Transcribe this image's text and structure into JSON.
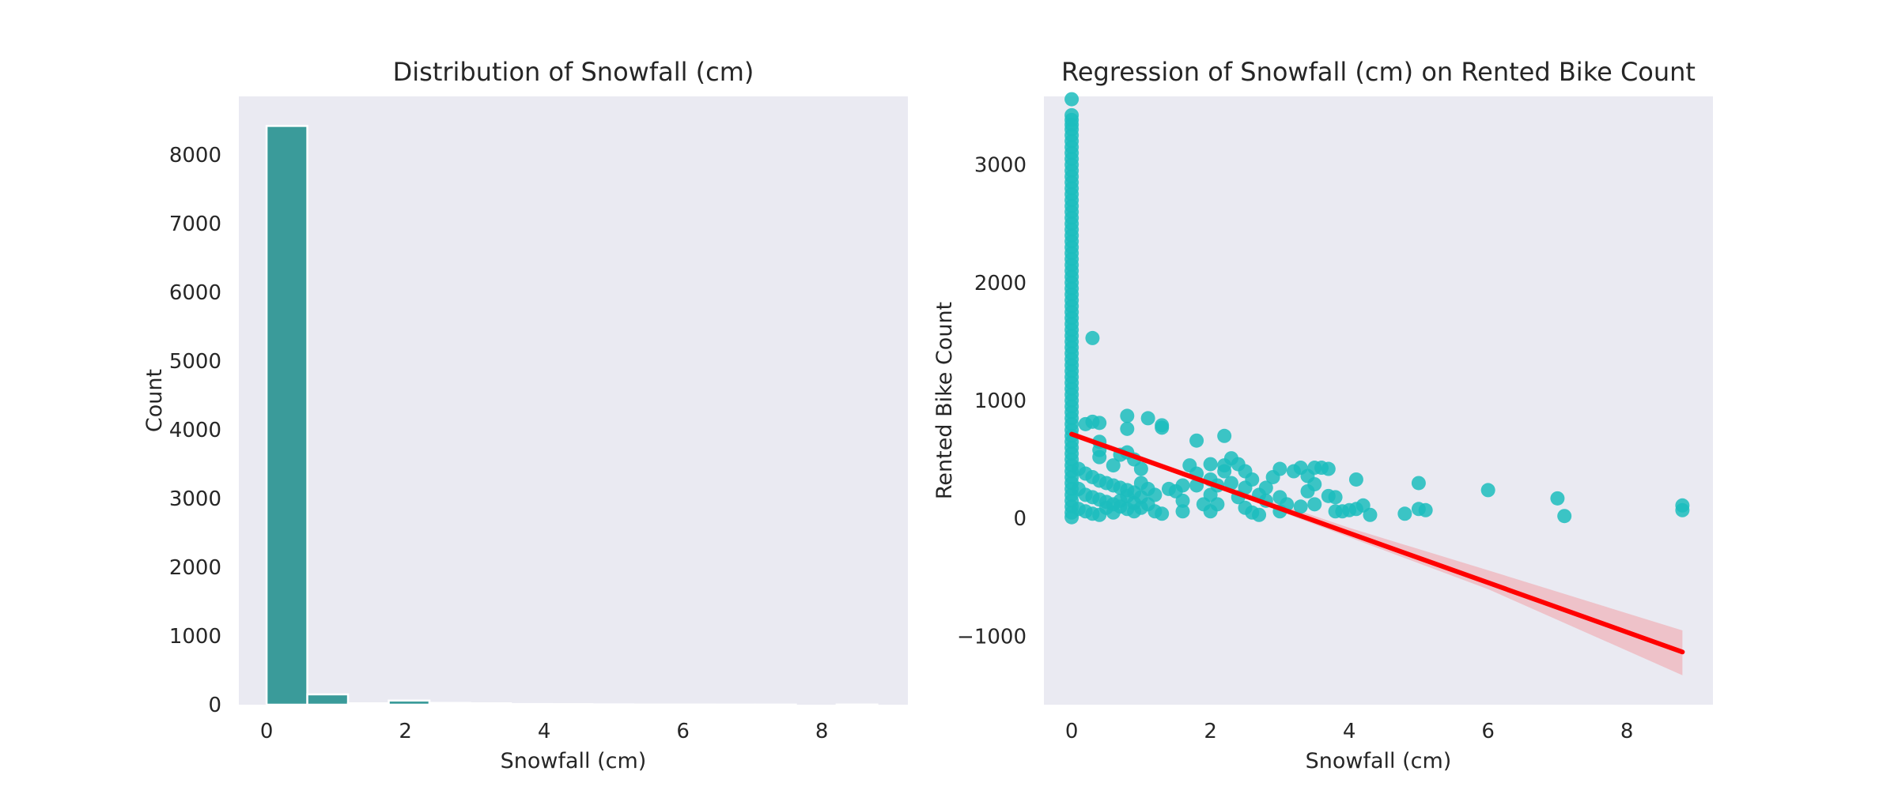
{
  "chart_data": [
    {
      "type": "bar",
      "title": "Distribution of Snowfall (cm)",
      "xlabel": "Snowfall (cm)",
      "ylabel": "Count",
      "xlim": [
        -0.4,
        9.24
      ],
      "ylim": [
        0,
        8850
      ],
      "xticks": [
        0,
        2,
        4,
        6,
        8
      ],
      "yticks": [
        0,
        1000,
        2000,
        3000,
        4000,
        5000,
        6000,
        7000,
        8000
      ],
      "bin_width": 0.5867,
      "bin_edges": [
        0,
        0.5867,
        1.1733,
        1.76,
        2.3467,
        2.9333,
        3.52,
        4.1067,
        4.6933,
        5.28,
        5.8667,
        6.4533,
        7.04,
        7.6267,
        8.2133,
        8.8
      ],
      "values": [
        8420,
        150,
        20,
        60,
        25,
        20,
        10,
        8,
        5,
        3,
        3,
        2,
        2,
        0,
        3
      ],
      "bar_color": "#3a9b9a",
      "grid": false
    },
    {
      "type": "scatter",
      "title": "Regression of Snowfall (cm) on Rented Bike Count",
      "xlabel": "Snowfall (cm)",
      "ylabel": "Rented Bike Count",
      "xlim": [
        -0.4,
        9.24
      ],
      "ylim": [
        -1580,
        3580
      ],
      "xticks": [
        0,
        2,
        4,
        6,
        8
      ],
      "yticks": [
        -1000,
        0,
        1000,
        2000,
        3000
      ],
      "point_color": "#1cbdbd",
      "line_color": "#ff0000",
      "band_color": "#f0a0a8",
      "grid": false,
      "points": [
        [
          0,
          3556
        ],
        [
          0,
          3420
        ],
        [
          0,
          3380
        ],
        [
          0,
          3340
        ],
        [
          0,
          3300
        ],
        [
          0,
          3250
        ],
        [
          0,
          3200
        ],
        [
          0,
          3150
        ],
        [
          0,
          3100
        ],
        [
          0,
          3050
        ],
        [
          0,
          3000
        ],
        [
          0,
          2950
        ],
        [
          0,
          2900
        ],
        [
          0,
          2850
        ],
        [
          0,
          2800
        ],
        [
          0,
          2750
        ],
        [
          0,
          2700
        ],
        [
          0,
          2650
        ],
        [
          0,
          2600
        ],
        [
          0,
          2550
        ],
        [
          0,
          2500
        ],
        [
          0,
          2450
        ],
        [
          0,
          2400
        ],
        [
          0,
          2350
        ],
        [
          0,
          2300
        ],
        [
          0,
          2250
        ],
        [
          0,
          2200
        ],
        [
          0,
          2150
        ],
        [
          0,
          2100
        ],
        [
          0,
          2050
        ],
        [
          0,
          2000
        ],
        [
          0,
          1950
        ],
        [
          0,
          1900
        ],
        [
          0,
          1850
        ],
        [
          0,
          1800
        ],
        [
          0,
          1750
        ],
        [
          0,
          1700
        ],
        [
          0,
          1650
        ],
        [
          0,
          1600
        ],
        [
          0,
          1550
        ],
        [
          0,
          1500
        ],
        [
          0,
          1450
        ],
        [
          0,
          1400
        ],
        [
          0,
          1350
        ],
        [
          0,
          1300
        ],
        [
          0,
          1250
        ],
        [
          0,
          1200
        ],
        [
          0,
          1150
        ],
        [
          0,
          1100
        ],
        [
          0,
          1050
        ],
        [
          0,
          1000
        ],
        [
          0,
          950
        ],
        [
          0,
          900
        ],
        [
          0,
          850
        ],
        [
          0,
          800
        ],
        [
          0,
          750
        ],
        [
          0,
          700
        ],
        [
          0,
          650
        ],
        [
          0,
          600
        ],
        [
          0,
          550
        ],
        [
          0,
          500
        ],
        [
          0,
          450
        ],
        [
          0,
          400
        ],
        [
          0,
          350
        ],
        [
          0,
          300
        ],
        [
          0,
          250
        ],
        [
          0,
          200
        ],
        [
          0,
          150
        ],
        [
          0,
          100
        ],
        [
          0,
          50
        ],
        [
          0,
          10
        ],
        [
          0.3,
          1530
        ],
        [
          0.2,
          800
        ],
        [
          0.3,
          820
        ],
        [
          0.4,
          810
        ],
        [
          0.8,
          870
        ],
        [
          0.8,
          760
        ],
        [
          1.1,
          850
        ],
        [
          1.3,
          790
        ],
        [
          1.3,
          770
        ],
        [
          0.4,
          650
        ],
        [
          0.4,
          580
        ],
        [
          0.4,
          520
        ],
        [
          0.8,
          560
        ],
        [
          0.7,
          540
        ],
        [
          0.9,
          500
        ],
        [
          1.0,
          420
        ],
        [
          0.6,
          450
        ],
        [
          0.1,
          420
        ],
        [
          0.2,
          380
        ],
        [
          0.3,
          350
        ],
        [
          0.4,
          320
        ],
        [
          0.5,
          300
        ],
        [
          0.6,
          280
        ],
        [
          0.7,
          260
        ],
        [
          0.8,
          240
        ],
        [
          0.9,
          220
        ],
        [
          0.1,
          250
        ],
        [
          0.2,
          200
        ],
        [
          0.3,
          180
        ],
        [
          0.4,
          160
        ],
        [
          0.5,
          140
        ],
        [
          0.6,
          120
        ],
        [
          0.7,
          100
        ],
        [
          0.8,
          80
        ],
        [
          0.9,
          60
        ],
        [
          0.1,
          80
        ],
        [
          0.2,
          60
        ],
        [
          0.3,
          40
        ],
        [
          0.4,
          30
        ],
        [
          0.5,
          90
        ],
        [
          0.6,
          50
        ],
        [
          0.7,
          150
        ],
        [
          0.8,
          190
        ],
        [
          0.9,
          130
        ],
        [
          1.0,
          300
        ],
        [
          1.0,
          180
        ],
        [
          1.0,
          90
        ],
        [
          1.1,
          250
        ],
        [
          1.1,
          120
        ],
        [
          1.2,
          60
        ],
        [
          1.2,
          200
        ],
        [
          1.3,
          40
        ],
        [
          1.4,
          250
        ],
        [
          1.5,
          230
        ],
        [
          1.6,
          280
        ],
        [
          1.6,
          150
        ],
        [
          1.6,
          60
        ],
        [
          1.7,
          450
        ],
        [
          1.8,
          380
        ],
        [
          1.8,
          280
        ],
        [
          1.8,
          660
        ],
        [
          1.9,
          120
        ],
        [
          2.0,
          460
        ],
        [
          2.0,
          330
        ],
        [
          2.0,
          200
        ],
        [
          2.0,
          60
        ],
        [
          2.1,
          280
        ],
        [
          2.1,
          120
        ],
        [
          2.2,
          700
        ],
        [
          2.2,
          450
        ],
        [
          2.2,
          400
        ],
        [
          2.3,
          510
        ],
        [
          2.3,
          300
        ],
        [
          2.4,
          460
        ],
        [
          2.4,
          180
        ],
        [
          2.5,
          400
        ],
        [
          2.5,
          260
        ],
        [
          2.5,
          90
        ],
        [
          2.6,
          330
        ],
        [
          2.6,
          50
        ],
        [
          2.7,
          30
        ],
        [
          2.7,
          200
        ],
        [
          2.8,
          260
        ],
        [
          2.8,
          150
        ],
        [
          2.9,
          350
        ],
        [
          3.0,
          420
        ],
        [
          3.0,
          180
        ],
        [
          3.0,
          60
        ],
        [
          3.1,
          120
        ],
        [
          3.2,
          400
        ],
        [
          3.3,
          430
        ],
        [
          3.3,
          100
        ],
        [
          3.4,
          360
        ],
        [
          3.4,
          230
        ],
        [
          3.5,
          290
        ],
        [
          3.5,
          120
        ],
        [
          3.5,
          430
        ],
        [
          3.6,
          430
        ],
        [
          3.7,
          420
        ],
        [
          3.7,
          190
        ],
        [
          3.8,
          180
        ],
        [
          3.8,
          60
        ],
        [
          3.9,
          60
        ],
        [
          4.0,
          70
        ],
        [
          4.1,
          80
        ],
        [
          4.2,
          110
        ],
        [
          4.3,
          30
        ],
        [
          4.1,
          330
        ],
        [
          4.8,
          40
        ],
        [
          5.0,
          300
        ],
        [
          5.0,
          80
        ],
        [
          5.1,
          70
        ],
        [
          6.0,
          240
        ],
        [
          7.0,
          170
        ],
        [
          7.1,
          20
        ],
        [
          8.8,
          110
        ],
        [
          8.8,
          70
        ]
      ],
      "regression": {
        "intercept": 715,
        "slope": -210
      },
      "ci_band": {
        "x": [
          0,
          2,
          4,
          6,
          8.8
        ],
        "lower": [
          690,
          280,
          -160,
          -600,
          -1330
        ],
        "upper": [
          740,
          320,
          -80,
          -440,
          -950
        ]
      }
    }
  ]
}
